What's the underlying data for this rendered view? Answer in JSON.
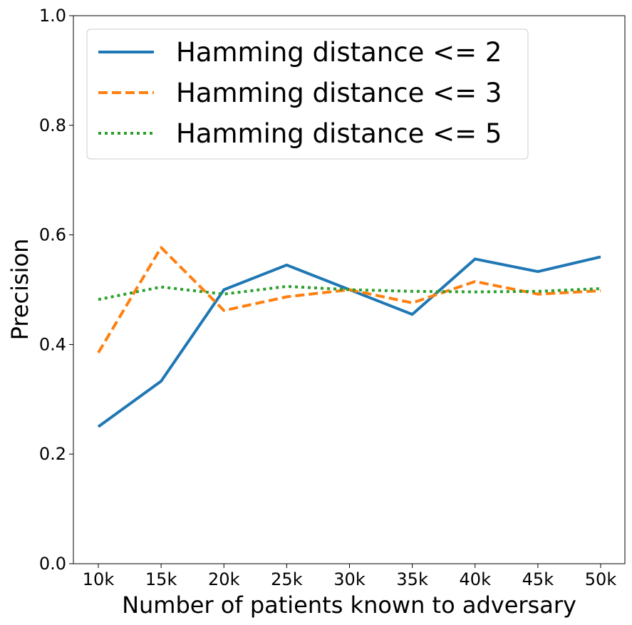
{
  "chart_data": {
    "type": "line",
    "title": "",
    "xlabel": "Number of patients known to adversary",
    "ylabel": "Precision",
    "categories": [
      "10k",
      "15k",
      "20k",
      "25k",
      "30k",
      "35k",
      "40k",
      "45k",
      "50k"
    ],
    "ylim": [
      0.0,
      1.0
    ],
    "yticks": [
      "0.0",
      "0.2",
      "0.4",
      "0.6",
      "0.8",
      "1.0"
    ],
    "grid": false,
    "legend_position": "top-left",
    "series": [
      {
        "name": "Hamming distance <= 2",
        "color": "#1f77b4",
        "style": "solid",
        "values": [
          0.25,
          0.333,
          0.5,
          0.545,
          0.5,
          0.455,
          0.556,
          0.533,
          0.56
        ]
      },
      {
        "name": "Hamming distance <= 3",
        "color": "#ff7f0e",
        "style": "dashed",
        "values": [
          0.385,
          0.577,
          0.462,
          0.487,
          0.5,
          0.476,
          0.515,
          0.492,
          0.498
        ]
      },
      {
        "name": "Hamming distance <= 5",
        "color": "#2ca02c",
        "style": "dotted",
        "values": [
          0.482,
          0.505,
          0.492,
          0.506,
          0.5,
          0.497,
          0.496,
          0.497,
          0.502
        ]
      }
    ]
  }
}
